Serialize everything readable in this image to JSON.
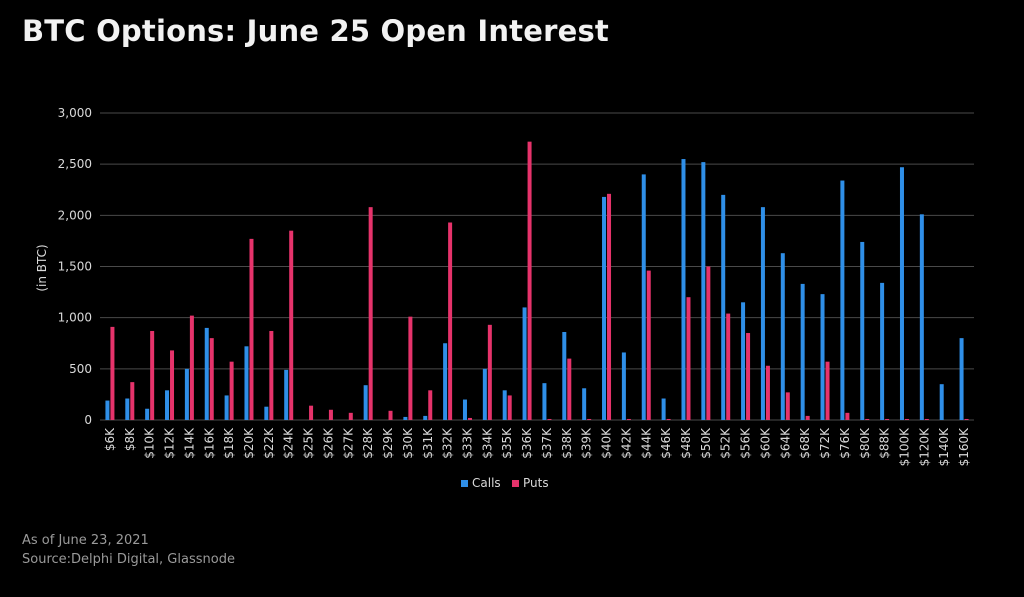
{
  "title": "BTC Options: June 25 Open Interest",
  "footer": {
    "as_of": "As of June 23, 2021",
    "source": "Source:Delphi Digital, Glassnode"
  },
  "colors": {
    "calls": "#2f8fe8",
    "puts": "#e6336b",
    "grid": "#4a4a4a",
    "text": "#d9d9d9"
  },
  "chart_data": {
    "type": "bar",
    "ylabel": "(in BTC)",
    "xlabel": "",
    "ylim": [
      0,
      3000
    ],
    "yticks": [
      "0",
      "500",
      "1,000",
      "1,500",
      "2,000",
      "2,500",
      "3,000"
    ],
    "ytick_values": [
      0,
      500,
      1000,
      1500,
      2000,
      2500,
      3000
    ],
    "grid": true,
    "legend_position": "bottom-center",
    "categories": [
      "$6K",
      "$8K",
      "$10K",
      "$12K",
      "$14K",
      "$16K",
      "$18K",
      "$20K",
      "$22K",
      "$24K",
      "$25K",
      "$26K",
      "$27K",
      "$28K",
      "$29K",
      "$30K",
      "$31K",
      "$32K",
      "$33K",
      "$34K",
      "$35K",
      "$36K",
      "$37K",
      "$38K",
      "$39K",
      "$40K",
      "$42K",
      "$44K",
      "$46K",
      "$48K",
      "$50K",
      "$52K",
      "$56K",
      "$60K",
      "$64K",
      "$68K",
      "$72K",
      "$76K",
      "$80K",
      "$88K",
      "$100K",
      "$120K",
      "$140K",
      "$160K"
    ],
    "series": [
      {
        "name": "Calls",
        "values": [
          190,
          210,
          110,
          290,
          500,
          900,
          240,
          720,
          130,
          490,
          0,
          0,
          0,
          340,
          0,
          30,
          40,
          750,
          200,
          500,
          290,
          1100,
          360,
          860,
          310,
          2180,
          660,
          2400,
          210,
          2550,
          2520,
          2200,
          1150,
          2080,
          1630,
          1330,
          1230,
          2340,
          1740,
          1340,
          2470,
          2010,
          350,
          800
        ]
      },
      {
        "name": "Puts",
        "values": [
          910,
          370,
          870,
          680,
          1020,
          800,
          570,
          1770,
          870,
          1850,
          140,
          100,
          70,
          2080,
          90,
          1010,
          290,
          1930,
          20,
          930,
          240,
          2720,
          10,
          600,
          10,
          2210,
          10,
          1460,
          10,
          1200,
          1500,
          1040,
          850,
          530,
          270,
          40,
          570,
          70,
          10,
          10,
          10,
          10,
          0,
          10
        ]
      }
    ]
  }
}
